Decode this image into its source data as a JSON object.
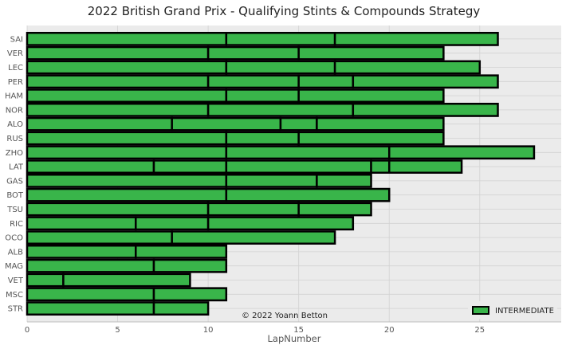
{
  "chart_data": {
    "type": "bar",
    "orientation": "horizontal",
    "stacked": true,
    "title": "2022 British Grand Prix - Qualifying Stints & Compounds Strategy",
    "xlabel": "LapNumber",
    "ylabel": "",
    "xlim": [
      0,
      29.5
    ],
    "xticks": [
      0,
      5,
      10,
      15,
      20,
      25
    ],
    "grid": true,
    "legend": {
      "position": "bottom-right",
      "entries": [
        "INTERMEDIATE"
      ]
    },
    "annotation": "© 2022 Yoann Betton",
    "compound_colors": {
      "INTERMEDIATE": "#39b54a"
    },
    "drivers": [
      {
        "driver": "SAI",
        "stints": [
          11,
          6,
          9
        ]
      },
      {
        "driver": "VER",
        "stints": [
          10,
          5,
          8
        ]
      },
      {
        "driver": "LEC",
        "stints": [
          11,
          6,
          8
        ]
      },
      {
        "driver": "PER",
        "stints": [
          10,
          5,
          3,
          8
        ]
      },
      {
        "driver": "HAM",
        "stints": [
          11,
          4,
          8
        ]
      },
      {
        "driver": "NOR",
        "stints": [
          10,
          8,
          8
        ]
      },
      {
        "driver": "ALO",
        "stints": [
          8,
          6,
          2,
          7
        ]
      },
      {
        "driver": "RUS",
        "stints": [
          11,
          4,
          8
        ]
      },
      {
        "driver": "ZHO",
        "stints": [
          11,
          9,
          8
        ]
      },
      {
        "driver": "LAT",
        "stints": [
          7,
          4,
          8,
          1,
          4
        ]
      },
      {
        "driver": "GAS",
        "stints": [
          11,
          5,
          3
        ]
      },
      {
        "driver": "BOT",
        "stints": [
          11,
          9
        ]
      },
      {
        "driver": "TSU",
        "stints": [
          10,
          5,
          4
        ]
      },
      {
        "driver": "RIC",
        "stints": [
          6,
          4,
          8
        ]
      },
      {
        "driver": "OCO",
        "stints": [
          8,
          9
        ]
      },
      {
        "driver": "ALB",
        "stints": [
          6,
          5
        ]
      },
      {
        "driver": "MAG",
        "stints": [
          7,
          4
        ]
      },
      {
        "driver": "VET",
        "stints": [
          2,
          7
        ]
      },
      {
        "driver": "MSC",
        "stints": [
          7,
          4
        ]
      },
      {
        "driver": "STR",
        "stints": [
          7,
          3
        ]
      }
    ]
  }
}
